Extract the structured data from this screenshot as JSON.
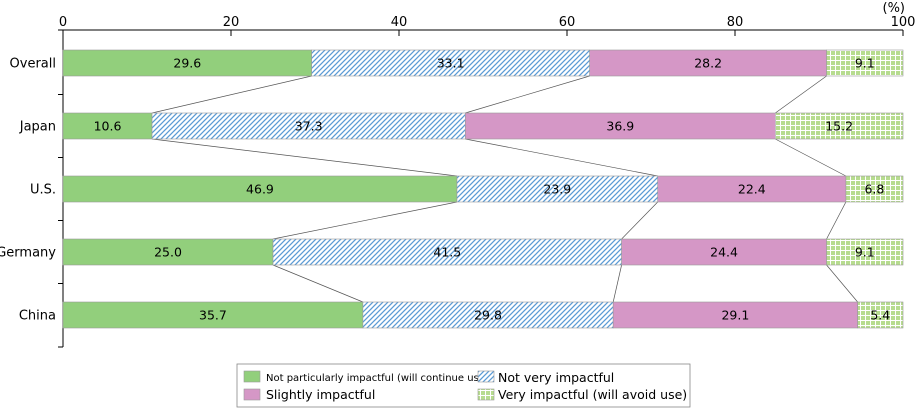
{
  "chart_data": {
    "type": "bar",
    "orientation": "horizontal",
    "stacked": true,
    "unit_label": "(%)",
    "xlim": [
      0,
      100
    ],
    "x_ticks": [
      0,
      20,
      40,
      60,
      80,
      100
    ],
    "categories": [
      "Overall",
      "Japan",
      "U.S.",
      "Germany",
      "China"
    ],
    "series": [
      {
        "name": "Not particularly impactful (will continue use)",
        "values": [
          29.6,
          10.6,
          46.9,
          25.0,
          35.7
        ],
        "labels": [
          "29.6",
          "10.6",
          "46.9",
          "25.0",
          "35.7"
        ],
        "color": "#92cf7c",
        "pattern": "solid"
      },
      {
        "name": "Not very impactful",
        "values": [
          33.1,
          37.3,
          23.9,
          41.5,
          29.8
        ],
        "labels": [
          "33.1",
          "37.3",
          "23.9",
          "41.5",
          "29.8"
        ],
        "color": "#5b9bd5",
        "pattern": "diagonal"
      },
      {
        "name": "Slightly impactful",
        "values": [
          28.2,
          36.9,
          22.4,
          24.4,
          29.1
        ],
        "labels": [
          "28.2",
          "36.9",
          "22.4",
          "24.4",
          "29.1"
        ],
        "color": "#d597c6",
        "pattern": "solid"
      },
      {
        "name": "Very impactful (will avoid use)",
        "values": [
          9.1,
          15.2,
          6.8,
          9.1,
          5.4
        ],
        "labels": [
          "9.1",
          "15.2",
          "6.8",
          "9.1",
          "5.4"
        ],
        "color": "#b7dc8f",
        "pattern": "grid"
      }
    ],
    "legend_position": "bottom",
    "connector_lines": true
  }
}
